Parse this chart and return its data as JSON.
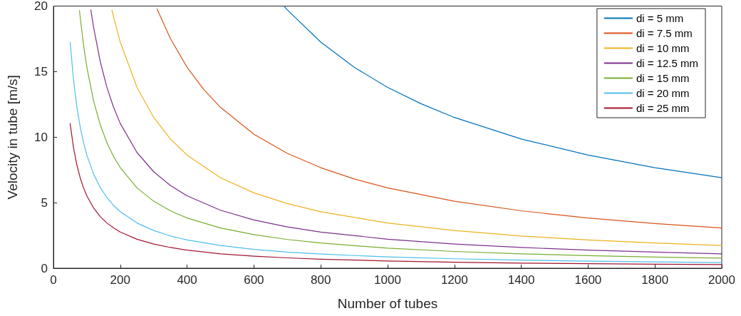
{
  "chart_data": {
    "type": "line",
    "xlabel": "Number of tubes",
    "ylabel": "Velocity in tube [m/s]",
    "xlim": [
      0,
      2000
    ],
    "xticks": [
      0,
      200,
      400,
      600,
      800,
      1000,
      1200,
      1400,
      1600,
      1800,
      2000
    ],
    "ylim": [
      0,
      20
    ],
    "yticks": [
      0,
      5,
      10,
      15,
      20
    ],
    "grid": false,
    "legend": "top right",
    "marker": "none",
    "line_style": "solid",
    "series": [
      {
        "name": "di = 5 mm",
        "color": "#0072bd",
        "x": [
          690,
          700,
          800,
          900,
          1000,
          1100,
          1200,
          1400,
          1600,
          1800,
          2000
        ],
        "values": [
          20,
          19.71,
          17.25,
          15.33,
          13.8,
          12.55,
          11.5,
          9.86,
          8.63,
          7.67,
          6.9
        ]
      },
      {
        "name": "di = 7.5 mm",
        "color": "#d95319",
        "x": [
          310,
          350,
          400,
          450,
          500,
          600,
          700,
          800,
          900,
          1000,
          1200,
          1400,
          1600,
          1800,
          2000
        ],
        "values": [
          19.78,
          17.52,
          15.33,
          13.63,
          12.27,
          10.22,
          8.76,
          7.67,
          6.81,
          6.13,
          5.11,
          4.38,
          3.83,
          3.41,
          3.07
        ]
      },
      {
        "name": "di = 10 mm",
        "color": "#edb120",
        "x": [
          175,
          180,
          200,
          250,
          300,
          350,
          400,
          500,
          600,
          700,
          800,
          1000,
          1200,
          1400,
          1600,
          1800,
          2000
        ],
        "values": [
          19.71,
          19.17,
          17.25,
          13.8,
          11.5,
          9.86,
          8.63,
          6.9,
          5.75,
          4.93,
          4.31,
          3.45,
          2.88,
          2.46,
          2.16,
          1.92,
          1.73
        ]
      },
      {
        "name": "di = 12.5 mm",
        "color": "#7e2f8e",
        "x": [
          112,
          120,
          140,
          160,
          180,
          200,
          250,
          300,
          350,
          400,
          500,
          600,
          700,
          800,
          1000,
          1200,
          1400,
          1600,
          1800,
          2000
        ],
        "values": [
          19.71,
          18.4,
          15.77,
          13.8,
          12.27,
          11.04,
          8.83,
          7.36,
          6.31,
          5.52,
          4.42,
          3.68,
          3.15,
          2.76,
          2.21,
          1.84,
          1.58,
          1.38,
          1.23,
          1.1
        ]
      },
      {
        "name": "di = 15 mm",
        "color": "#77ac30",
        "x": [
          78,
          80,
          90,
          100,
          120,
          140,
          160,
          180,
          200,
          250,
          300,
          350,
          400,
          500,
          600,
          700,
          800,
          1000,
          1200,
          1400,
          1600,
          1800,
          2000
        ],
        "values": [
          19.66,
          19.17,
          17.04,
          15.33,
          12.78,
          10.95,
          9.58,
          8.52,
          7.67,
          6.13,
          5.11,
          4.38,
          3.83,
          3.07,
          2.56,
          2.19,
          1.92,
          1.53,
          1.28,
          1.1,
          0.96,
          0.85,
          0.77
        ]
      },
      {
        "name": "di = 20 mm",
        "color": "#4dbeee",
        "x": [
          50,
          60,
          70,
          80,
          90,
          100,
          120,
          140,
          160,
          180,
          200,
          250,
          300,
          350,
          400,
          500,
          600,
          700,
          800,
          1000,
          1200,
          1400,
          1600,
          1800,
          2000
        ],
        "values": [
          17.25,
          14.38,
          12.32,
          10.78,
          9.58,
          8.63,
          7.19,
          6.16,
          5.39,
          4.79,
          4.31,
          3.45,
          2.88,
          2.46,
          2.16,
          1.73,
          1.44,
          1.23,
          1.08,
          0.86,
          0.72,
          0.62,
          0.54,
          0.48,
          0.43
        ]
      },
      {
        "name": "di = 25 mm",
        "color": "#a2142f",
        "x": [
          50,
          60,
          70,
          80,
          90,
          100,
          120,
          140,
          160,
          180,
          200,
          250,
          300,
          350,
          400,
          500,
          600,
          700,
          800,
          1000,
          1200,
          1400,
          1600,
          1800,
          2000
        ],
        "values": [
          11.04,
          9.2,
          7.89,
          6.9,
          6.13,
          5.52,
          4.6,
          3.94,
          3.45,
          3.07,
          2.76,
          2.21,
          1.84,
          1.58,
          1.38,
          1.1,
          0.92,
          0.79,
          0.69,
          0.55,
          0.46,
          0.39,
          0.35,
          0.31,
          0.28
        ]
      }
    ]
  }
}
